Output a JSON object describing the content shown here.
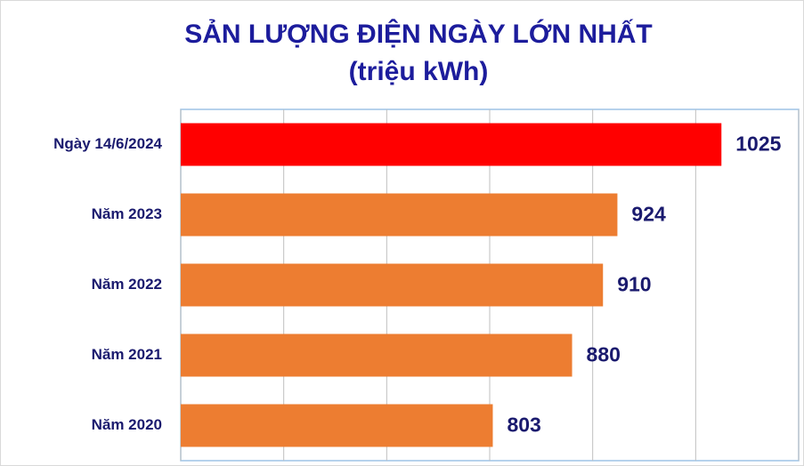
{
  "chart_data": {
    "type": "hbar",
    "title": "SẢN LƯỢNG ĐIỆN NGÀY LỚN NHẤT",
    "subtitle": "(triệu kWh)",
    "categories": [
      "Ngày 14/6/2024",
      "Năm 2023",
      "Năm 2022",
      "Năm 2021",
      "Năm 2020"
    ],
    "values": [
      1025,
      924,
      910,
      880,
      803
    ],
    "colors": [
      "#ff0000",
      "#ed7d31",
      "#ed7d31",
      "#ed7d31",
      "#ed7d31"
    ],
    "xlim": [
      500,
      1100
    ],
    "xticks": [
      500,
      600,
      700,
      800,
      900,
      1000,
      1100
    ],
    "grid": true
  }
}
